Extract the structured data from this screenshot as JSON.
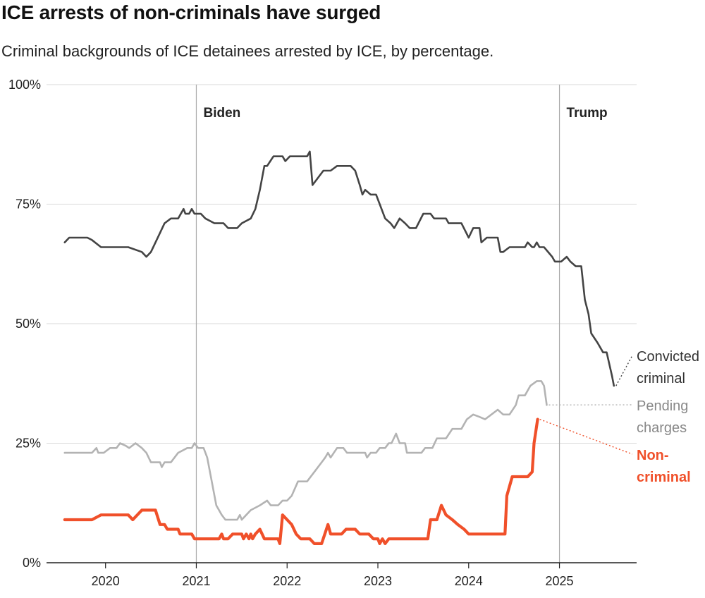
{
  "title": "ICE arrests of non-criminals have surged",
  "subtitle": "Criminal backgrounds of ICE detainees arrested by ICE, by percentage.",
  "colors": {
    "convicted": "#444444",
    "pending": "#b3b3b3",
    "noncriminal": "#f0502a",
    "grid": "#d9d9d9",
    "axis": "#222222",
    "marker": "#aaaaaa"
  },
  "chart_data": {
    "type": "line",
    "title": "ICE arrests of non-criminals have surged",
    "subtitle": "Criminal backgrounds of ICE detainees arrested by ICE, by percentage.",
    "xlabel": "",
    "ylabel": "",
    "xlim": [
      2019.35,
      2025.85
    ],
    "ylim": [
      0,
      100
    ],
    "y_ticks": [
      0,
      25,
      50,
      75,
      100
    ],
    "y_tick_labels": [
      "0%",
      "25%",
      "50%",
      "75%",
      "100%"
    ],
    "x_ticks": [
      2020,
      2021,
      2022,
      2023,
      2024,
      2025
    ],
    "x_tick_labels": [
      "2020",
      "2021",
      "2022",
      "2023",
      "2024",
      "2025"
    ],
    "grid": "horizontal",
    "annotations": [
      {
        "label": "Biden",
        "x": 2021.0
      },
      {
        "label": "Trump",
        "x": 2025.0
      }
    ],
    "series": [
      {
        "name": "Convicted criminal",
        "label_lines": [
          "Convicted",
          "criminal"
        ],
        "color_key": "convicted",
        "points": [
          [
            2019.55,
            67
          ],
          [
            2019.6,
            68
          ],
          [
            2019.8,
            68
          ],
          [
            2019.85,
            67.5
          ],
          [
            2019.95,
            66
          ],
          [
            2020.1,
            66
          ],
          [
            2020.25,
            66
          ],
          [
            2020.4,
            65
          ],
          [
            2020.45,
            64
          ],
          [
            2020.5,
            65
          ],
          [
            2020.6,
            69
          ],
          [
            2020.65,
            71
          ],
          [
            2020.72,
            72
          ],
          [
            2020.8,
            72
          ],
          [
            2020.86,
            74
          ],
          [
            2020.88,
            73
          ],
          [
            2020.92,
            73
          ],
          [
            2020.95,
            74
          ],
          [
            2020.98,
            73
          ],
          [
            2021.05,
            73
          ],
          [
            2021.1,
            72
          ],
          [
            2021.2,
            71
          ],
          [
            2021.3,
            71
          ],
          [
            2021.35,
            70
          ],
          [
            2021.45,
            70
          ],
          [
            2021.5,
            71
          ],
          [
            2021.6,
            72
          ],
          [
            2021.65,
            74
          ],
          [
            2021.7,
            78
          ],
          [
            2021.75,
            83
          ],
          [
            2021.78,
            83
          ],
          [
            2021.85,
            85
          ],
          [
            2021.95,
            85
          ],
          [
            2021.98,
            84
          ],
          [
            2022.03,
            85
          ],
          [
            2022.1,
            85
          ],
          [
            2022.15,
            85
          ],
          [
            2022.18,
            85
          ],
          [
            2022.2,
            85
          ],
          [
            2022.22,
            85
          ],
          [
            2022.25,
            86
          ],
          [
            2022.28,
            79
          ],
          [
            2022.4,
            82
          ],
          [
            2022.48,
            82
          ],
          [
            2022.55,
            83
          ],
          [
            2022.7,
            83
          ],
          [
            2022.75,
            82
          ],
          [
            2022.8,
            79
          ],
          [
            2022.83,
            77
          ],
          [
            2022.86,
            78
          ],
          [
            2022.92,
            77
          ],
          [
            2022.98,
            77
          ],
          [
            2023.02,
            75
          ],
          [
            2023.08,
            72
          ],
          [
            2023.14,
            71
          ],
          [
            2023.18,
            70
          ],
          [
            2023.24,
            72
          ],
          [
            2023.3,
            71
          ],
          [
            2023.35,
            70
          ],
          [
            2023.42,
            70
          ],
          [
            2023.5,
            73
          ],
          [
            2023.58,
            73
          ],
          [
            2023.62,
            72
          ],
          [
            2023.75,
            72
          ],
          [
            2023.78,
            71
          ],
          [
            2023.92,
            71
          ],
          [
            2024.0,
            68
          ],
          [
            2024.05,
            70
          ],
          [
            2024.12,
            70
          ],
          [
            2024.14,
            67
          ],
          [
            2024.2,
            68
          ],
          [
            2024.32,
            68
          ],
          [
            2024.35,
            65
          ],
          [
            2024.38,
            65
          ],
          [
            2024.45,
            66
          ],
          [
            2024.62,
            66
          ],
          [
            2024.65,
            67
          ],
          [
            2024.7,
            66
          ],
          [
            2024.72,
            66
          ],
          [
            2024.75,
            67
          ],
          [
            2024.78,
            66
          ],
          [
            2024.83,
            66
          ],
          [
            2024.92,
            64
          ],
          [
            2024.95,
            63
          ],
          [
            2025.02,
            63
          ],
          [
            2025.08,
            64
          ],
          [
            2025.12,
            63
          ],
          [
            2025.18,
            62
          ],
          [
            2025.24,
            62
          ],
          [
            2025.28,
            55
          ],
          [
            2025.32,
            52
          ],
          [
            2025.35,
            48
          ],
          [
            2025.42,
            46
          ],
          [
            2025.48,
            44
          ],
          [
            2025.52,
            44
          ],
          [
            2025.58,
            39
          ],
          [
            2025.6,
            37
          ]
        ]
      },
      {
        "name": "Pending charges",
        "label_lines": [
          "Pending",
          "charges"
        ],
        "color_key": "pending",
        "points": [
          [
            2019.55,
            23
          ],
          [
            2019.7,
            23
          ],
          [
            2019.85,
            23
          ],
          [
            2019.9,
            24
          ],
          [
            2019.92,
            23
          ],
          [
            2019.98,
            23
          ],
          [
            2020.05,
            24
          ],
          [
            2020.12,
            24
          ],
          [
            2020.16,
            25
          ],
          [
            2020.22,
            24.5
          ],
          [
            2020.26,
            24
          ],
          [
            2020.33,
            25
          ],
          [
            2020.4,
            24
          ],
          [
            2020.45,
            23
          ],
          [
            2020.5,
            21
          ],
          [
            2020.6,
            21
          ],
          [
            2020.62,
            20
          ],
          [
            2020.65,
            21
          ],
          [
            2020.72,
            21
          ],
          [
            2020.8,
            23
          ],
          [
            2020.9,
            24
          ],
          [
            2020.95,
            24
          ],
          [
            2020.98,
            25
          ],
          [
            2021.02,
            24
          ],
          [
            2021.08,
            24
          ],
          [
            2021.12,
            22
          ],
          [
            2021.16,
            18
          ],
          [
            2021.22,
            12
          ],
          [
            2021.28,
            10
          ],
          [
            2021.32,
            9
          ],
          [
            2021.45,
            9
          ],
          [
            2021.48,
            10
          ],
          [
            2021.5,
            9
          ],
          [
            2021.55,
            10
          ],
          [
            2021.6,
            11
          ],
          [
            2021.7,
            12
          ],
          [
            2021.78,
            13
          ],
          [
            2021.82,
            12
          ],
          [
            2021.9,
            12
          ],
          [
            2021.95,
            13
          ],
          [
            2022.0,
            13
          ],
          [
            2022.05,
            14
          ],
          [
            2022.12,
            17
          ],
          [
            2022.22,
            17
          ],
          [
            2022.3,
            19
          ],
          [
            2022.38,
            21
          ],
          [
            2022.42,
            22
          ],
          [
            2022.45,
            23
          ],
          [
            2022.48,
            22
          ],
          [
            2022.55,
            24
          ],
          [
            2022.62,
            24
          ],
          [
            2022.66,
            23
          ],
          [
            2022.72,
            23
          ],
          [
            2022.86,
            23
          ],
          [
            2022.88,
            22
          ],
          [
            2022.92,
            23
          ],
          [
            2022.98,
            23
          ],
          [
            2023.02,
            24
          ],
          [
            2023.08,
            24
          ],
          [
            2023.12,
            25
          ],
          [
            2023.15,
            25
          ],
          [
            2023.2,
            27
          ],
          [
            2023.24,
            25
          ],
          [
            2023.3,
            25
          ],
          [
            2023.32,
            23
          ],
          [
            2023.42,
            23
          ],
          [
            2023.48,
            23
          ],
          [
            2023.52,
            24
          ],
          [
            2023.6,
            24
          ],
          [
            2023.65,
            26
          ],
          [
            2023.75,
            26
          ],
          [
            2023.82,
            28
          ],
          [
            2023.88,
            28
          ],
          [
            2023.92,
            28
          ],
          [
            2023.98,
            30
          ],
          [
            2024.05,
            31
          ],
          [
            2024.12,
            30.5
          ],
          [
            2024.18,
            30
          ],
          [
            2024.25,
            31
          ],
          [
            2024.32,
            32
          ],
          [
            2024.38,
            31
          ],
          [
            2024.45,
            31
          ],
          [
            2024.52,
            33
          ],
          [
            2024.55,
            35
          ],
          [
            2024.62,
            35
          ],
          [
            2024.68,
            37
          ],
          [
            2024.75,
            38
          ],
          [
            2024.8,
            38
          ],
          [
            2024.83,
            37
          ],
          [
            2024.86,
            33
          ]
        ]
      },
      {
        "name": "Non-criminal",
        "label_lines": [
          "Non-",
          "criminal"
        ],
        "color_key": "noncriminal",
        "points": [
          [
            2019.55,
            9
          ],
          [
            2019.7,
            9
          ],
          [
            2019.85,
            9
          ],
          [
            2019.95,
            10
          ],
          [
            2020.1,
            10
          ],
          [
            2020.2,
            10
          ],
          [
            2020.25,
            10
          ],
          [
            2020.3,
            9
          ],
          [
            2020.35,
            10
          ],
          [
            2020.4,
            11
          ],
          [
            2020.5,
            11
          ],
          [
            2020.55,
            11
          ],
          [
            2020.6,
            8
          ],
          [
            2020.65,
            8
          ],
          [
            2020.68,
            7
          ],
          [
            2020.8,
            7
          ],
          [
            2020.82,
            6
          ],
          [
            2020.95,
            6
          ],
          [
            2020.98,
            5
          ],
          [
            2021.1,
            5
          ],
          [
            2021.2,
            5
          ],
          [
            2021.25,
            5
          ],
          [
            2021.28,
            6
          ],
          [
            2021.3,
            5
          ],
          [
            2021.35,
            5
          ],
          [
            2021.4,
            6
          ],
          [
            2021.5,
            6
          ],
          [
            2021.52,
            5
          ],
          [
            2021.55,
            6
          ],
          [
            2021.58,
            5
          ],
          [
            2021.6,
            6
          ],
          [
            2021.62,
            5
          ],
          [
            2021.65,
            6
          ],
          [
            2021.7,
            7
          ],
          [
            2021.75,
            5
          ],
          [
            2021.8,
            5
          ],
          [
            2021.9,
            5
          ],
          [
            2021.92,
            4
          ],
          [
            2021.95,
            10
          ],
          [
            2022.05,
            8
          ],
          [
            2022.1,
            6
          ],
          [
            2022.15,
            5
          ],
          [
            2022.25,
            5
          ],
          [
            2022.3,
            4
          ],
          [
            2022.38,
            4
          ],
          [
            2022.45,
            8
          ],
          [
            2022.48,
            6
          ],
          [
            2022.6,
            6
          ],
          [
            2022.65,
            7
          ],
          [
            2022.75,
            7
          ],
          [
            2022.8,
            6
          ],
          [
            2022.9,
            6
          ],
          [
            2022.95,
            5
          ],
          [
            2023.0,
            5
          ],
          [
            2023.02,
            4
          ],
          [
            2023.05,
            5
          ],
          [
            2023.08,
            4
          ],
          [
            2023.12,
            5
          ],
          [
            2023.2,
            5
          ],
          [
            2023.3,
            5
          ],
          [
            2023.45,
            5
          ],
          [
            2023.5,
            5
          ],
          [
            2023.55,
            5
          ],
          [
            2023.58,
            9
          ],
          [
            2023.65,
            9
          ],
          [
            2023.7,
            12
          ],
          [
            2023.75,
            10
          ],
          [
            2023.82,
            9
          ],
          [
            2023.88,
            8
          ],
          [
            2023.95,
            7
          ],
          [
            2024.0,
            6
          ],
          [
            2024.25,
            6
          ],
          [
            2024.4,
            6
          ],
          [
            2024.42,
            14
          ],
          [
            2024.48,
            18
          ],
          [
            2024.65,
            18
          ],
          [
            2024.7,
            19
          ],
          [
            2024.72,
            25
          ],
          [
            2024.76,
            30
          ]
        ]
      }
    ]
  }
}
